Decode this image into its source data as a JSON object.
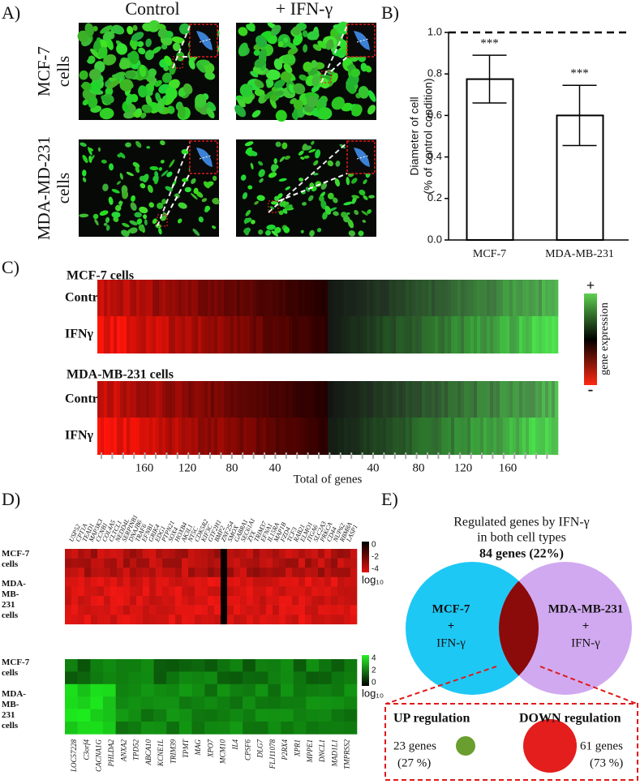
{
  "panel_labels": [
    "A)",
    "B)",
    "C)",
    "D)",
    "E)"
  ],
  "panel_a": {
    "column_titles": [
      "Control",
      "+ IFN-γ"
    ],
    "row_labels": [
      [
        "MCF-7",
        "cells"
      ],
      [
        "MDA-MD-231",
        "cells"
      ]
    ]
  },
  "chart_data": {
    "type": "bar",
    "y_label": [
      "Diameter of cell",
      "(% of control condition)"
    ],
    "categories": [
      "MCF-7",
      "MDA-MB-231"
    ],
    "values": [
      0.775,
      0.6
    ],
    "errors": [
      0.115,
      0.145
    ],
    "annotations": [
      "***",
      "***"
    ],
    "color": "#ffffff",
    "reference_line": 1,
    "ylim": [
      0,
      1
    ],
    "yticks": [
      {
        "value": 0,
        "label": "0.0"
      },
      0.2,
      0.4,
      0.6,
      0.8,
      {
        "value": 1,
        "label": "1.0"
      }
    ]
  },
  "panel_c": {
    "groups": [
      {
        "title": "MCF-7 cells",
        "rows": [
          "Control",
          "IFNγ"
        ]
      },
      {
        "title": "MDA-MB-231 cells",
        "rows": [
          "Control",
          "IFNγ"
        ]
      }
    ],
    "x_tick_labels": [
      "160",
      "120",
      "80",
      "40",
      "40",
      "80",
      "120",
      "160"
    ],
    "x_label": "Total of genes",
    "colorbar": {
      "top": "+",
      "label": "gene expression",
      "bottom": "-"
    }
  },
  "panel_d": {
    "top_genes": [
      "USP52",
      "CPT1A",
      "TEAD1",
      "MAP3K3",
      "CCNB1",
      "COL4A5",
      "CLTCL1",
      "NEDD4L",
      "SERPINB1",
      "DNAJB6",
      "TRAF6",
      "EFNB1",
      "GRIK4",
      "EDG1",
      "PTPN21",
      "SOX4",
      "HOXB4",
      "AK3L1",
      "NT5C",
      "CDK5R2",
      "KIF3C",
      "GTF2H1",
      "BMP2",
      "ZNF254",
      "SMOX",
      "GABRA1",
      "SEC61A1",
      "ZYX",
      "TRIM37",
      "EFNA1",
      "IL15RA",
      "MAP1B",
      "FZD4",
      "TCF3",
      "RAB21",
      "ELMO1",
      "ITGA6",
      "SLC2A3",
      "PRKCA",
      "CD44",
      "NUP62",
      "RBM8A",
      "LASP1"
    ],
    "bottom_genes": [
      "LOC57228",
      "C3orf4",
      "CACNA1G",
      "PHLDA2",
      "ANXA2",
      "TPD52",
      "ABCA10",
      "KCNE1L",
      "TRIM39",
      "TPMT",
      "MAG",
      "XPO7",
      "MCM10",
      "IL4",
      "CPSF6",
      "DLG7",
      "FLJ11078",
      "P2RX4",
      "XPR1",
      "MPPE1",
      "DNCL1",
      "MAD1L1",
      "TMPRSS2"
    ],
    "row_labels": [
      [
        "MCF-7",
        "cells"
      ],
      [
        "MDA-",
        "MB-",
        "231",
        "cells"
      ]
    ],
    "red_colorbar": [
      "0",
      "-2",
      "-4"
    ],
    "green_colorbar": [
      "4",
      "2",
      "0"
    ],
    "colorbar_unit": "log₁₀"
  },
  "panel_e": {
    "title_lines": [
      "Regulated genes by IFN-γ",
      "in both cell types"
    ],
    "total": "84 genes (22%)",
    "sets": [
      [
        "MCF-7",
        "+",
        "IFN-γ"
      ],
      [
        "MDA-MB-231",
        "+",
        "IFN-γ"
      ]
    ],
    "up": {
      "title": "UP regulation",
      "count": "23 genes",
      "share": "(27 %)"
    },
    "down": {
      "title": "DOWN regulation",
      "count": "61 genes",
      "share": "(73 %)"
    }
  }
}
